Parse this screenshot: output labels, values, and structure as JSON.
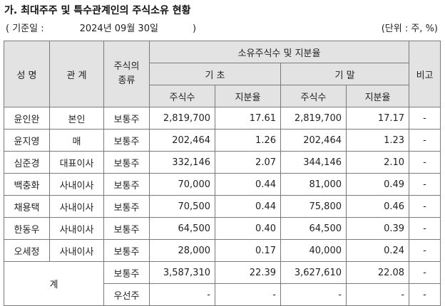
{
  "title": "가. 최대주주 및 특수관계인의 주식소유 현황",
  "basis": {
    "open": "( 기준일 :",
    "date": "2024년 09월 30일",
    "close": ")"
  },
  "unit": "(단위 : 주, %)",
  "headers": {
    "name": "성 명",
    "relation": "관 계",
    "stock_kind_1": "주식의",
    "stock_kind_2": "종류",
    "ownership": "소유주식수 및 지분율",
    "period_start": "기 초",
    "period_end": "기 말",
    "shares": "주식수",
    "ratio": "지분율",
    "note": "비고"
  },
  "rows": [
    {
      "name": "윤인완",
      "relation": "본인",
      "kind": "보통주",
      "start_shares": "2,819,700",
      "start_ratio": "17.61",
      "end_shares": "2,819,700",
      "end_ratio": "17.17",
      "note": "-"
    },
    {
      "name": "윤지영",
      "relation": "매",
      "kind": "보통주",
      "start_shares": "202,464",
      "start_ratio": "1.26",
      "end_shares": "202,464",
      "end_ratio": "1.23",
      "note": "-"
    },
    {
      "name": "심준경",
      "relation": "대표이사",
      "kind": "보통주",
      "start_shares": "332,146",
      "start_ratio": "2.07",
      "end_shares": "344,146",
      "end_ratio": "2.10",
      "note": "-"
    },
    {
      "name": "백충화",
      "relation": "사내이사",
      "kind": "보통주",
      "start_shares": "70,000",
      "start_ratio": "0.44",
      "end_shares": "81,000",
      "end_ratio": "0.49",
      "note": "-"
    },
    {
      "name": "채용택",
      "relation": "사내이사",
      "kind": "보통주",
      "start_shares": "70,500",
      "start_ratio": "0.44",
      "end_shares": "75,800",
      "end_ratio": "0.46",
      "note": "-"
    },
    {
      "name": "한동우",
      "relation": "사내이사",
      "kind": "보통주",
      "start_shares": "64,500",
      "start_ratio": "0.40",
      "end_shares": "64,500",
      "end_ratio": "0.39",
      "note": "-"
    },
    {
      "name": "오세정",
      "relation": "사내이사",
      "kind": "보통주",
      "start_shares": "28,000",
      "start_ratio": "0.17",
      "end_shares": "40,000",
      "end_ratio": "0.24",
      "note": "-"
    }
  ],
  "total": {
    "label": "계",
    "rows": [
      {
        "kind": "보통주",
        "start_shares": "3,587,310",
        "start_ratio": "22.39",
        "end_shares": "3,627,610",
        "end_ratio": "22.08",
        "note": "-"
      },
      {
        "kind": "우선주",
        "start_shares": "-",
        "start_ratio": "-",
        "end_shares": "-",
        "end_ratio": "-",
        "note": "-"
      }
    ]
  },
  "colors": {
    "header_bg": "#e3e3e3",
    "border": "#7a7a7a"
  }
}
